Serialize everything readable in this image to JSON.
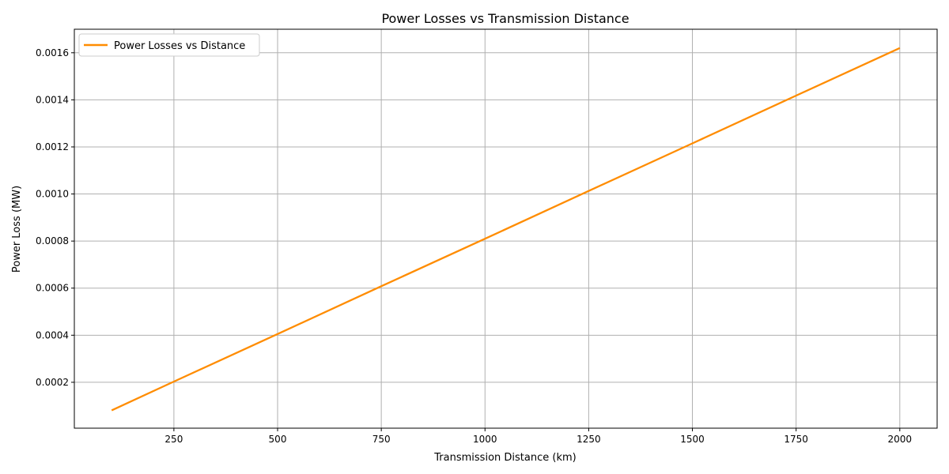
{
  "chart_data": {
    "type": "line",
    "title": "Power Losses vs Transmission Distance",
    "xlabel": "Transmission Distance (km)",
    "ylabel": "Power Loss (MW)",
    "xlim": [
      10,
      2090
    ],
    "ylim": [
      5e-06,
      0.0017
    ],
    "xticks": [
      250,
      500,
      750,
      1000,
      1250,
      1500,
      1750,
      2000
    ],
    "xtick_labels": [
      "250",
      "500",
      "750",
      "1000",
      "1250",
      "1500",
      "1750",
      "2000"
    ],
    "yticks": [
      0.0002,
      0.0004,
      0.0006,
      0.0008,
      0.001,
      0.0012,
      0.0014,
      0.0016
    ],
    "ytick_labels": [
      "0.0002",
      "0.0004",
      "0.0006",
      "0.0008",
      "0.0010",
      "0.0012",
      "0.0014",
      "0.0016"
    ],
    "grid": true,
    "legend_position": "upper-left",
    "series": [
      {
        "name": "Power Losses vs Distance",
        "color": "#ff8c00",
        "x": [
          100,
          250,
          500,
          750,
          1000,
          1250,
          1500,
          1750,
          2000
        ],
        "y": [
          8.1e-05,
          0.000203,
          0.000405,
          0.000608,
          0.00081,
          0.001013,
          0.001215,
          0.001418,
          0.00162
        ]
      }
    ]
  }
}
